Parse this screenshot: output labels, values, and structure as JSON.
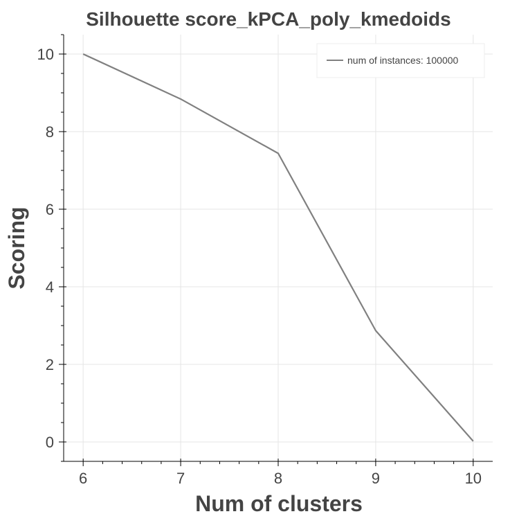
{
  "chart_data": {
    "type": "line",
    "title": "Silhouette score_kPCA_poly_kmedoids",
    "xlabel": "Num of clusters",
    "ylabel": "Scoring",
    "x": [
      6,
      7,
      8,
      9,
      10
    ],
    "series": [
      {
        "name": "num of instances: 100000",
        "values": [
          10.0,
          8.84,
          7.44,
          2.87,
          0.02
        ],
        "color": "#808080"
      }
    ],
    "xlim": [
      5.8,
      10.2
    ],
    "ylim": [
      -0.5,
      10.5
    ],
    "x_ticks": [
      6,
      7,
      8,
      9,
      10
    ],
    "x_tick_labels": [
      "6",
      "7",
      "8",
      "9",
      "10"
    ],
    "y_ticks": [
      0,
      2,
      4,
      6,
      8,
      10
    ],
    "y_tick_labels": [
      "0",
      "2",
      "4",
      "6",
      "8",
      "10"
    ],
    "grid": true,
    "legend_position": "top-right"
  }
}
